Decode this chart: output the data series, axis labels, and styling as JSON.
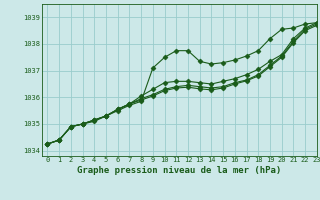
{
  "title": "Graphe pression niveau de la mer (hPa)",
  "bg_color": "#cce8e8",
  "grid_color": "#99cccc",
  "line_color": "#1a5c1a",
  "xlim": [
    -0.5,
    23
  ],
  "ylim": [
    1033.8,
    1039.5
  ],
  "yticks": [
    1034,
    1035,
    1036,
    1037,
    1038,
    1039
  ],
  "xticks": [
    0,
    1,
    2,
    3,
    4,
    5,
    6,
    7,
    8,
    9,
    10,
    11,
    12,
    13,
    14,
    15,
    16,
    17,
    18,
    19,
    20,
    21,
    22,
    23
  ],
  "series": [
    [
      1034.25,
      1034.4,
      1034.9,
      1035.0,
      1035.1,
      1035.3,
      1035.5,
      1035.7,
      1035.85,
      1037.1,
      1037.5,
      1037.75,
      1037.75,
      1037.35,
      1037.25,
      1037.3,
      1037.4,
      1037.55,
      1037.75,
      1038.2,
      1038.55,
      1038.6,
      1038.75,
      1038.8
    ],
    [
      1034.25,
      1034.4,
      1034.9,
      1035.0,
      1035.15,
      1035.3,
      1035.55,
      1035.75,
      1036.05,
      1036.3,
      1036.55,
      1036.6,
      1036.6,
      1036.55,
      1036.5,
      1036.6,
      1036.7,
      1036.85,
      1037.05,
      1037.35,
      1037.6,
      1038.2,
      1038.6,
      1038.8
    ],
    [
      1034.25,
      1034.4,
      1034.9,
      1035.0,
      1035.15,
      1035.3,
      1035.55,
      1035.75,
      1035.95,
      1036.1,
      1036.3,
      1036.4,
      1036.45,
      1036.4,
      1036.35,
      1036.4,
      1036.55,
      1036.65,
      1036.85,
      1037.2,
      1037.55,
      1038.1,
      1038.55,
      1038.75
    ],
    [
      1034.25,
      1034.4,
      1034.9,
      1035.0,
      1035.15,
      1035.3,
      1035.55,
      1035.75,
      1035.9,
      1036.05,
      1036.25,
      1036.35,
      1036.38,
      1036.32,
      1036.28,
      1036.35,
      1036.5,
      1036.62,
      1036.8,
      1037.15,
      1037.5,
      1038.05,
      1038.5,
      1038.7
    ]
  ],
  "marker": "D",
  "markersize": 2.5,
  "linewidth": 0.8,
  "title_fontsize": 6.5,
  "tick_fontsize": 5.0
}
